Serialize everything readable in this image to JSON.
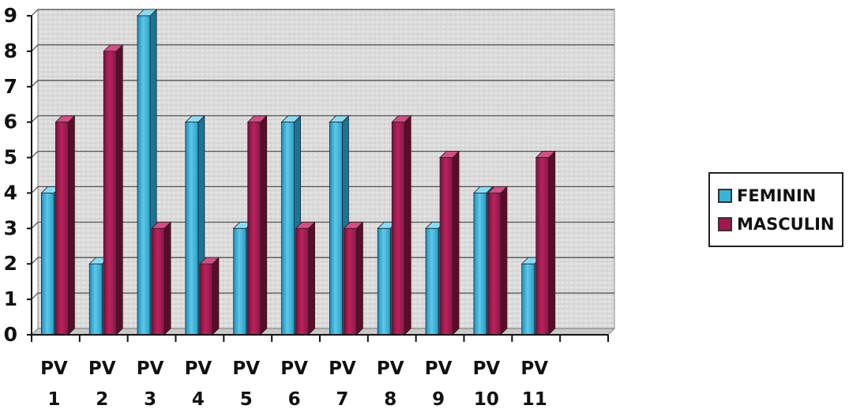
{
  "chart_data": {
    "type": "bar",
    "categories": [
      [
        "PV",
        "1"
      ],
      [
        "PV",
        "2"
      ],
      [
        "PV",
        "3"
      ],
      [
        "PV",
        "4"
      ],
      [
        "PV",
        "5"
      ],
      [
        "PV",
        "6"
      ],
      [
        "PV",
        "7"
      ],
      [
        "PV",
        "8"
      ],
      [
        "PV",
        "9"
      ],
      [
        "PV",
        "10"
      ],
      [
        "PV",
        "11"
      ]
    ],
    "series": [
      {
        "name": "FEMININ",
        "color": "#35b4dc",
        "values": [
          4,
          2,
          9,
          6,
          3,
          6,
          6,
          3,
          3,
          4,
          2
        ]
      },
      {
        "name": "MASCULIN",
        "color": "#a3174f",
        "values": [
          6,
          8,
          3,
          2,
          6,
          3,
          3,
          6,
          5,
          4,
          5
        ]
      }
    ],
    "yticks": [
      "0",
      "1",
      "2",
      "3",
      "4",
      "5",
      "6",
      "7",
      "8",
      "9"
    ],
    "ylim": [
      0,
      9
    ],
    "grid": true,
    "legend_position": "right"
  },
  "legend": {
    "items": [
      {
        "label": "FEMININ",
        "color": "#35b4dc"
      },
      {
        "label": "MASCULIN",
        "color": "#a3174f"
      }
    ]
  }
}
